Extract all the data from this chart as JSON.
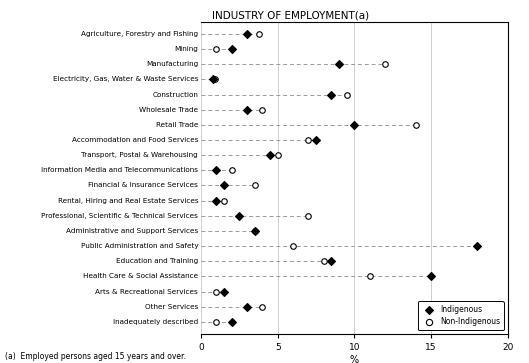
{
  "categories": [
    "Agriculture, Forestry and Fishing",
    "Mining",
    "Manufacturing",
    "Electricity, Gas, Water & Waste Services",
    "Construction",
    "Wholesale Trade",
    "Retail Trade",
    "Accommodation and Food Services",
    "Transport, Postal & Warehousing",
    "Information Media and Telecommunications",
    "Financial & Insurance Services",
    "Rental, Hiring and Real Estate Services",
    "Professional, Scientific & Technical Services",
    "Administrative and Support Services",
    "Public Administration and Safety",
    "Education and Training",
    "Health Care & Social Assistance",
    "Arts & Recreational Services",
    "Other Services",
    "Inadequately described"
  ],
  "indigenous": [
    3.0,
    2.0,
    9.0,
    0.8,
    8.5,
    3.0,
    10.0,
    7.5,
    4.5,
    1.0,
    1.5,
    1.0,
    2.5,
    3.5,
    18.0,
    8.5,
    15.0,
    1.5,
    3.0,
    2.0
  ],
  "non_indigenous": [
    3.8,
    1.0,
    12.0,
    0.9,
    9.5,
    4.0,
    14.0,
    7.0,
    5.0,
    2.0,
    3.5,
    1.5,
    7.0,
    3.5,
    6.0,
    8.0,
    11.0,
    1.0,
    4.0,
    1.0
  ],
  "xlabel": "%",
  "xlim": [
    0,
    20
  ],
  "xticks": [
    0,
    5,
    10,
    15,
    20
  ],
  "footnote": "(a)  Employed persons aged 15 years and over.",
  "legend_indigenous": "Indigenous",
  "legend_non_indigenous": "Non-Indigenous",
  "line_color": "#999999",
  "indigenous_marker": "D",
  "non_indigenous_marker": "o",
  "marker_edge_color": "#000000",
  "indigenous_fill": "#000000",
  "non_indigenous_fill": "#ffffff",
  "marker_size": 4,
  "background_color": "#ffffff",
  "top_label": "INDUSTRY OF EMPLOYMENT(a)"
}
